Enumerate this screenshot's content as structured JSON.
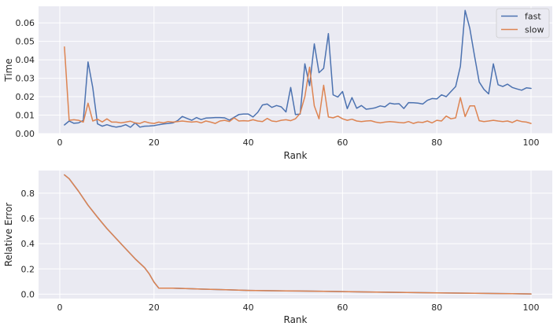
{
  "colors": {
    "fast": "#4c72b0",
    "slow": "#dd8452",
    "panel_bg": "#eaeaf2",
    "grid": "#ffffff"
  },
  "chart_data": [
    {
      "type": "line",
      "xlabel": "Rank",
      "ylabel": "Time",
      "xlim": [
        -4.5,
        104.5
      ],
      "ylim": [
        0,
        0.069
      ],
      "xticks": [
        0,
        20,
        40,
        60,
        80,
        100
      ],
      "yticks": [
        0.0,
        0.01,
        0.02,
        0.03,
        0.04,
        0.05,
        0.06
      ],
      "ytick_labels": [
        "0.00",
        "0.01",
        "0.02",
        "0.03",
        "0.04",
        "0.05",
        "0.06"
      ],
      "grid": true,
      "legend": "top-right",
      "x_start": 1,
      "series": [
        {
          "name": "fast",
          "color": "#4c72b0",
          "values": [
            0.0047,
            0.0068,
            0.0056,
            0.0058,
            0.0072,
            0.0388,
            0.0249,
            0.0053,
            0.004,
            0.0048,
            0.004,
            0.0035,
            0.0039,
            0.0048,
            0.0034,
            0.0058,
            0.0035,
            0.004,
            0.0041,
            0.0043,
            0.0048,
            0.0052,
            0.0055,
            0.0058,
            0.007,
            0.0093,
            0.0082,
            0.0072,
            0.0087,
            0.0076,
            0.0084,
            0.0085,
            0.0087,
            0.0087,
            0.0085,
            0.0073,
            0.0088,
            0.0103,
            0.0106,
            0.0106,
            0.009,
            0.0115,
            0.0155,
            0.016,
            0.0142,
            0.0152,
            0.0145,
            0.0117,
            0.025,
            0.0103,
            0.0105,
            0.0378,
            0.026,
            0.0486,
            0.033,
            0.0354,
            0.0542,
            0.021,
            0.0198,
            0.0228,
            0.0135,
            0.0195,
            0.0137,
            0.0152,
            0.0132,
            0.0135,
            0.014,
            0.015,
            0.0145,
            0.0165,
            0.016,
            0.0162,
            0.0136,
            0.0168,
            0.0167,
            0.0165,
            0.016,
            0.018,
            0.019,
            0.0188,
            0.021,
            0.02,
            0.0228,
            0.0255,
            0.0365,
            0.0668,
            0.057,
            0.042,
            0.028,
            0.024,
            0.0215,
            0.0378,
            0.0265,
            0.0255,
            0.0268,
            0.025,
            0.0242,
            0.0235,
            0.0248,
            0.0245
          ]
        },
        {
          "name": "slow",
          "color": "#dd8452",
          "values": [
            0.047,
            0.0072,
            0.0075,
            0.0072,
            0.0062,
            0.0165,
            0.0068,
            0.0078,
            0.0063,
            0.008,
            0.0062,
            0.0062,
            0.0058,
            0.0062,
            0.0067,
            0.0058,
            0.0055,
            0.0065,
            0.0058,
            0.0055,
            0.0062,
            0.0058,
            0.0065,
            0.0062,
            0.0065,
            0.0068,
            0.0065,
            0.0062,
            0.0065,
            0.0058,
            0.0068,
            0.0062,
            0.0055,
            0.0068,
            0.0072,
            0.0065,
            0.0085,
            0.0068,
            0.007,
            0.0068,
            0.0075,
            0.0068,
            0.0065,
            0.0082,
            0.0068,
            0.0065,
            0.0072,
            0.0075,
            0.007,
            0.008,
            0.011,
            0.02,
            0.036,
            0.015,
            0.008,
            0.0262,
            0.009,
            0.0085,
            0.0095,
            0.008,
            0.0072,
            0.0078,
            0.0068,
            0.0065,
            0.0068,
            0.007,
            0.0062,
            0.0058,
            0.0062,
            0.0065,
            0.0063,
            0.006,
            0.0058,
            0.0065,
            0.0055,
            0.0062,
            0.006,
            0.0068,
            0.0058,
            0.0072,
            0.0068,
            0.0095,
            0.008,
            0.0085,
            0.0195,
            0.0092,
            0.015,
            0.015,
            0.007,
            0.0065,
            0.0068,
            0.0072,
            0.0068,
            0.0065,
            0.0068,
            0.006,
            0.0072,
            0.0065,
            0.0062,
            0.0055
          ]
        }
      ]
    },
    {
      "type": "line",
      "xlabel": "Rank",
      "ylabel": "Relative Error",
      "xlim": [
        -4.5,
        104.5
      ],
      "ylim": [
        -0.035,
        0.98
      ],
      "xticks": [
        0,
        20,
        40,
        60,
        80,
        100
      ],
      "yticks": [
        0.0,
        0.2,
        0.4,
        0.6,
        0.8
      ],
      "ytick_labels": [
        "0.0",
        "0.2",
        "0.4",
        "0.6",
        "0.8"
      ],
      "grid": true,
      "legend": "none",
      "series": [
        {
          "color": "#4c72b0",
          "x": [
            1,
            2,
            4,
            6,
            8,
            10,
            12,
            14,
            16,
            18,
            19,
            20,
            21,
            24,
            28,
            32,
            36,
            40,
            48,
            56,
            64,
            72,
            80,
            88,
            96,
            100
          ],
          "values": [
            0.945,
            0.915,
            0.815,
            0.705,
            0.61,
            0.52,
            0.44,
            0.36,
            0.28,
            0.21,
            0.16,
            0.095,
            0.048,
            0.048,
            0.043,
            0.038,
            0.034,
            0.03,
            0.026,
            0.022,
            0.018,
            0.014,
            0.01,
            0.007,
            0.004,
            0.002
          ]
        },
        {
          "color": "#dd8452",
          "x": [
            1,
            2,
            4,
            6,
            8,
            10,
            12,
            14,
            16,
            18,
            19,
            20,
            21,
            24,
            28,
            32,
            36,
            40,
            48,
            56,
            64,
            72,
            80,
            88,
            96,
            100
          ],
          "values": [
            0.945,
            0.915,
            0.815,
            0.705,
            0.61,
            0.52,
            0.44,
            0.36,
            0.28,
            0.21,
            0.16,
            0.095,
            0.048,
            0.048,
            0.043,
            0.038,
            0.034,
            0.03,
            0.026,
            0.022,
            0.018,
            0.014,
            0.01,
            0.007,
            0.004,
            0.002
          ]
        }
      ]
    }
  ]
}
